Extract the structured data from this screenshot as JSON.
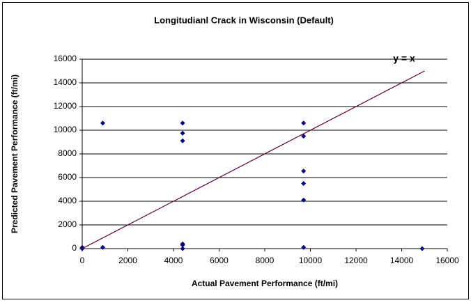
{
  "chart_data": {
    "type": "scatter",
    "title": "Longitudianl Crack in Wisconsin (Default)",
    "x_label": "Actual Pavement Performance (ft/mi)",
    "y_label": "Predicted Pavement Performance (ft/mi)",
    "annotation": "y = x",
    "series": [
      {
        "color": "#000080",
        "x": [
          0,
          0,
          900,
          900,
          4400,
          4400,
          4400,
          4400,
          4400,
          4400,
          9700,
          9700,
          9700,
          9700,
          9700,
          9700,
          14900
        ],
        "values": [
          100,
          0,
          10600,
          100,
          10600,
          9750,
          9100,
          400,
          300,
          0,
          10600,
          9500,
          6550,
          5500,
          4100,
          100,
          0
        ]
      },
      {
        "color": "#660033",
        "line": true,
        "x": [
          0,
          15000
        ],
        "values": [
          0,
          15000
        ]
      }
    ],
    "xlim": [
      0,
      16000
    ],
    "xticks": [
      0,
      2000,
      4000,
      6000,
      8000,
      10000,
      12000,
      14000,
      16000
    ],
    "ylim": [
      0,
      16000
    ],
    "yticks": [
      0,
      2000,
      4000,
      6000,
      8000,
      10000,
      12000,
      14000,
      16000
    ],
    "grid": true
  }
}
